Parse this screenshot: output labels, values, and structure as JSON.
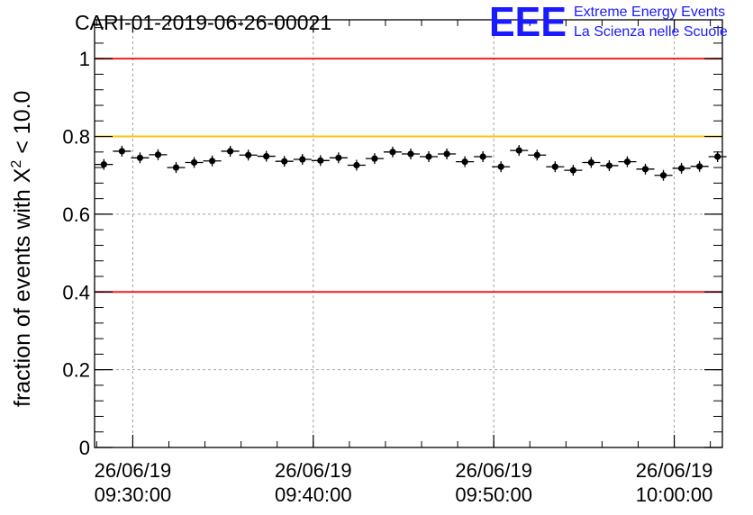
{
  "title": "CARI-01-2019-06-26-00021",
  "logo": {
    "mark": "EEE",
    "line1": "Extreme Energy Events",
    "line2": "La Scienza nelle Scuole",
    "color": "#1a1aff"
  },
  "chart_data": {
    "type": "scatter",
    "title": "CARI-01-2019-06-26-00021",
    "ylabel_main": "fraction of events with X",
    "ylabel_sup": "2",
    "ylabel_tail": " < 10.0",
    "xlabel": "",
    "xlim": [
      "2019-06-26 09:27:53",
      "2019-06-26 10:02:40"
    ],
    "ylim": [
      0,
      1.1
    ],
    "yticks": [
      {
        "value": 0,
        "label": "0"
      },
      {
        "value": 0.2,
        "label": "0.2"
      },
      {
        "value": 0.4,
        "label": "0.4"
      },
      {
        "value": 0.6,
        "label": "0.6"
      },
      {
        "value": 0.8,
        "label": "0.8"
      },
      {
        "value": 1.0,
        "label": "1"
      }
    ],
    "xticks": [
      {
        "value": "2019-06-26 09:30:00",
        "date": "26/06/19",
        "time": "09:30:00"
      },
      {
        "value": "2019-06-26 09:40:00",
        "date": "26/06/19",
        "time": "09:40:00"
      },
      {
        "value": "2019-06-26 09:50:00",
        "date": "26/06/19",
        "time": "09:50:00"
      },
      {
        "value": "2019-06-26 10:00:00",
        "date": "26/06/19",
        "time": "10:00:00"
      }
    ],
    "grid": true,
    "reference_lines": [
      {
        "y": 1.0,
        "color": "#e8201e"
      },
      {
        "y": 0.8,
        "color": "#ffc20e"
      },
      {
        "y": 0.4,
        "color": "#e8201e"
      }
    ],
    "bin_width_seconds": 60,
    "points": [
      {
        "x": "2019-06-26 09:28:24",
        "y": 0.728
      },
      {
        "x": "2019-06-26 09:29:24",
        "y": 0.762
      },
      {
        "x": "2019-06-26 09:30:24",
        "y": 0.745
      },
      {
        "x": "2019-06-26 09:31:24",
        "y": 0.753
      },
      {
        "x": "2019-06-26 09:32:24",
        "y": 0.72
      },
      {
        "x": "2019-06-26 09:33:24",
        "y": 0.733
      },
      {
        "x": "2019-06-26 09:34:24",
        "y": 0.737
      },
      {
        "x": "2019-06-26 09:35:24",
        "y": 0.762
      },
      {
        "x": "2019-06-26 09:36:24",
        "y": 0.752
      },
      {
        "x": "2019-06-26 09:37:24",
        "y": 0.749
      },
      {
        "x": "2019-06-26 09:38:24",
        "y": 0.736
      },
      {
        "x": "2019-06-26 09:39:24",
        "y": 0.741
      },
      {
        "x": "2019-06-26 09:40:24",
        "y": 0.738
      },
      {
        "x": "2019-06-26 09:41:24",
        "y": 0.745
      },
      {
        "x": "2019-06-26 09:42:24",
        "y": 0.726
      },
      {
        "x": "2019-06-26 09:43:24",
        "y": 0.743
      },
      {
        "x": "2019-06-26 09:44:24",
        "y": 0.76
      },
      {
        "x": "2019-06-26 09:45:24",
        "y": 0.755
      },
      {
        "x": "2019-06-26 09:46:24",
        "y": 0.748
      },
      {
        "x": "2019-06-26 09:47:24",
        "y": 0.755
      },
      {
        "x": "2019-06-26 09:48:24",
        "y": 0.735
      },
      {
        "x": "2019-06-26 09:49:24",
        "y": 0.748
      },
      {
        "x": "2019-06-26 09:50:24",
        "y": 0.722
      },
      {
        "x": "2019-06-26 09:51:24",
        "y": 0.764
      },
      {
        "x": "2019-06-26 09:52:24",
        "y": 0.752
      },
      {
        "x": "2019-06-26 09:53:24",
        "y": 0.722
      },
      {
        "x": "2019-06-26 09:54:24",
        "y": 0.713
      },
      {
        "x": "2019-06-26 09:55:24",
        "y": 0.733
      },
      {
        "x": "2019-06-26 09:56:24",
        "y": 0.725
      },
      {
        "x": "2019-06-26 09:57:24",
        "y": 0.735
      },
      {
        "x": "2019-06-26 09:58:24",
        "y": 0.716
      },
      {
        "x": "2019-06-26 09:59:24",
        "y": 0.7
      },
      {
        "x": "2019-06-26 10:00:24",
        "y": 0.718
      },
      {
        "x": "2019-06-26 10:01:24",
        "y": 0.723
      },
      {
        "x": "2019-06-26 10:02:24",
        "y": 0.748
      }
    ]
  }
}
